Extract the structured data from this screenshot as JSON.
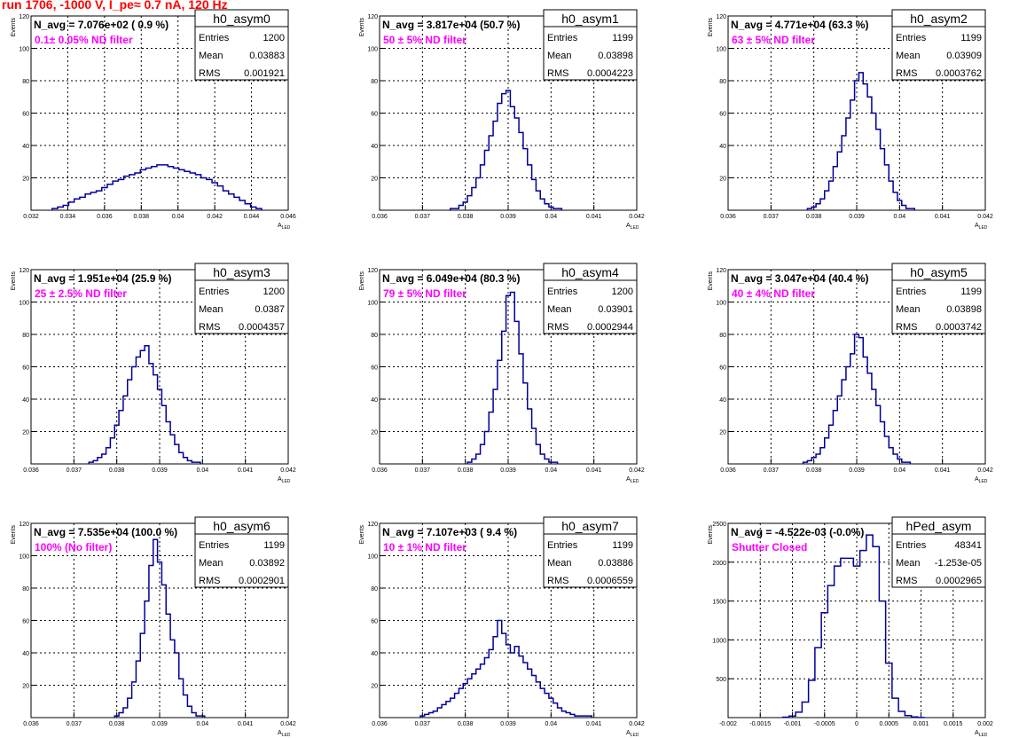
{
  "page_title": "run 1706, -1000 V, I_pe≈ 0.7 nA, 120 Hz",
  "stat_labels": {
    "entries": "Entries",
    "mean": "Mean",
    "rms": "RMS"
  },
  "axis_titles": {
    "y": "Events",
    "x_main": "A",
    "x_sub": "LED"
  },
  "colors": {
    "line": "#000099",
    "note": "#ff00ff",
    "title": "#ff0000",
    "grid": "#000000"
  },
  "chart_data": [
    {
      "type": "bar",
      "name": "h0_asym0",
      "navg": "N_avg = 7.076e+02 ( 0.9 %)",
      "note": "0.1± 0.05% ND filter",
      "stats": {
        "entries": "1200",
        "mean": "0.03883",
        "rms": "0.001921"
      },
      "xlim": [
        0.032,
        0.046
      ],
      "ylim": [
        0,
        120
      ],
      "xticks": [
        0.032,
        0.034,
        0.036,
        0.038,
        0.04,
        0.042,
        0.044,
        0.046
      ],
      "xtick_labels": [
        "0.032",
        "0.034",
        "0.036",
        "0.038",
        "0.04",
        "0.042",
        "0.044",
        "0.046"
      ],
      "yticks": [
        20,
        40,
        60,
        80,
        100,
        120
      ],
      "ytick_labels": [
        "20",
        "40",
        "60",
        "80",
        "100",
        "120"
      ],
      "x": [
        0.0333,
        0.0336,
        0.0339,
        0.0342,
        0.0345,
        0.0348,
        0.0351,
        0.0354,
        0.0357,
        0.036,
        0.0363,
        0.0366,
        0.0369,
        0.0372,
        0.0375,
        0.0378,
        0.0381,
        0.0384,
        0.0387,
        0.039,
        0.0393,
        0.0396,
        0.0399,
        0.0402,
        0.0405,
        0.0408,
        0.0411,
        0.0414,
        0.0417,
        0.042,
        0.0423,
        0.0426,
        0.0429,
        0.0432,
        0.0435,
        0.0438,
        0.0441,
        0.0444
      ],
      "values": [
        1,
        2,
        3,
        5,
        7,
        8,
        10,
        11,
        12,
        14,
        16,
        18,
        19,
        21,
        22,
        23,
        25,
        26,
        27,
        28,
        28,
        27,
        26,
        25,
        24,
        23,
        22,
        20,
        19,
        17,
        15,
        12,
        10,
        8,
        6,
        4,
        2,
        1
      ]
    },
    {
      "type": "bar",
      "name": "h0_asym1",
      "navg": "N_avg = 3.817e+04 (50.7 %)",
      "note": "50 ± 5% ND filter",
      "stats": {
        "entries": "1199",
        "mean": "0.03898",
        "rms": "0.0004223"
      },
      "xlim": [
        0.036,
        0.042
      ],
      "ylim": [
        0,
        120
      ],
      "xticks": [
        0.036,
        0.037,
        0.038,
        0.039,
        0.04,
        0.041,
        0.042
      ],
      "xtick_labels": [
        "0.036",
        "0.037",
        "0.038",
        "0.039",
        "0.04",
        "0.041",
        "0.042"
      ],
      "yticks": [
        20,
        40,
        60,
        80,
        100,
        120
      ],
      "ytick_labels": [
        "20",
        "40",
        "60",
        "80",
        "100",
        "120"
      ],
      "x": [
        0.0377,
        0.0378,
        0.0379,
        0.038,
        0.0381,
        0.0382,
        0.0383,
        0.0384,
        0.0385,
        0.0386,
        0.0387,
        0.0388,
        0.0389,
        0.039,
        0.0391,
        0.0392,
        0.0393,
        0.0394,
        0.0395,
        0.0396,
        0.0397,
        0.0398,
        0.0399,
        0.04,
        0.0401,
        0.0402
      ],
      "values": [
        1,
        1,
        3,
        5,
        9,
        14,
        20,
        28,
        37,
        46,
        55,
        66,
        72,
        74,
        64,
        57,
        48,
        38,
        28,
        19,
        12,
        7,
        4,
        2,
        1,
        1
      ]
    },
    {
      "type": "bar",
      "name": "h0_asym2",
      "navg": "N_avg = 4.771e+04 (63.3 %)",
      "note": "63 ± 5% ND filter",
      "stats": {
        "entries": "1199",
        "mean": "0.03909",
        "rms": "0.0003762"
      },
      "xlim": [
        0.036,
        0.042
      ],
      "ylim": [
        0,
        120
      ],
      "xticks": [
        0.036,
        0.037,
        0.038,
        0.039,
        0.04,
        0.041,
        0.042
      ],
      "xtick_labels": [
        "0.036",
        "0.037",
        "0.038",
        "0.039",
        "0.04",
        "0.041",
        "0.042"
      ],
      "yticks": [
        20,
        40,
        60,
        80,
        100,
        120
      ],
      "ytick_labels": [
        "20",
        "40",
        "60",
        "80",
        "100",
        "120"
      ],
      "x": [
        0.0379,
        0.038,
        0.0381,
        0.0382,
        0.0383,
        0.0384,
        0.0385,
        0.0386,
        0.0387,
        0.0388,
        0.0389,
        0.039,
        0.0391,
        0.0392,
        0.0393,
        0.0394,
        0.0395,
        0.0396,
        0.0397,
        0.0398,
        0.0399,
        0.04,
        0.0401,
        0.0402,
        0.0403
      ],
      "values": [
        1,
        2,
        4,
        7,
        12,
        18,
        27,
        36,
        46,
        57,
        68,
        80,
        85,
        78,
        70,
        60,
        50,
        38,
        28,
        18,
        11,
        6,
        3,
        1,
        1
      ]
    },
    {
      "type": "bar",
      "name": "h0_asym3",
      "navg": "N_avg = 1.951e+04 (25.9 %)",
      "note": "25 ± 2.5% ND filter",
      "stats": {
        "entries": "1200",
        "mean": "0.0387",
        "rms": "0.0004357"
      },
      "xlim": [
        0.036,
        0.042
      ],
      "ylim": [
        0,
        120
      ],
      "xticks": [
        0.036,
        0.037,
        0.038,
        0.039,
        0.04,
        0.041,
        0.042
      ],
      "xtick_labels": [
        "0.036",
        "0.037",
        "0.038",
        "0.039",
        "0.04",
        "0.041",
        "0.042"
      ],
      "yticks": [
        20,
        40,
        60,
        80,
        100,
        120
      ],
      "ytick_labels": [
        "20",
        "40",
        "60",
        "80",
        "100",
        "120"
      ],
      "x": [
        0.0374,
        0.0375,
        0.0376,
        0.0377,
        0.0378,
        0.0379,
        0.038,
        0.0381,
        0.0382,
        0.0383,
        0.0384,
        0.0385,
        0.0386,
        0.0387,
        0.0388,
        0.0389,
        0.039,
        0.0391,
        0.0392,
        0.0393,
        0.0394,
        0.0395,
        0.0396,
        0.0397,
        0.0398,
        0.0399
      ],
      "values": [
        1,
        2,
        4,
        6,
        10,
        16,
        24,
        33,
        42,
        52,
        60,
        66,
        70,
        73,
        62,
        55,
        46,
        36,
        26,
        18,
        12,
        7,
        4,
        2,
        1,
        1
      ]
    },
    {
      "type": "bar",
      "name": "h0_asym4",
      "navg": "N_avg = 6.049e+04 (80.3 %)",
      "note": "79 ± 5% ND filter",
      "stats": {
        "entries": "1200",
        "mean": "0.03901",
        "rms": "0.0002944"
      },
      "xlim": [
        0.036,
        0.042
      ],
      "ylim": [
        0,
        120
      ],
      "xticks": [
        0.036,
        0.037,
        0.038,
        0.039,
        0.04,
        0.041,
        0.042
      ],
      "xtick_labels": [
        "0.036",
        "0.037",
        "0.038",
        "0.039",
        "0.04",
        "0.041",
        "0.042"
      ],
      "yticks": [
        20,
        40,
        60,
        80,
        100,
        120
      ],
      "ytick_labels": [
        "20",
        "40",
        "60",
        "80",
        "100",
        "120"
      ],
      "x": [
        0.0381,
        0.0382,
        0.0383,
        0.0384,
        0.0385,
        0.0386,
        0.0387,
        0.0388,
        0.0389,
        0.039,
        0.0391,
        0.0392,
        0.0393,
        0.0394,
        0.0395,
        0.0396,
        0.0397,
        0.0398,
        0.0399,
        0.04,
        0.0401
      ],
      "values": [
        1,
        3,
        6,
        12,
        20,
        32,
        46,
        64,
        82,
        104,
        106,
        88,
        68,
        50,
        34,
        22,
        12,
        6,
        3,
        1,
        1
      ]
    },
    {
      "type": "bar",
      "name": "h0_asym5",
      "navg": "N_avg = 3.047e+04 (40.4 %)",
      "note": "40 ± 4% ND filter",
      "stats": {
        "entries": "1199",
        "mean": "0.03898",
        "rms": "0.0003742"
      },
      "xlim": [
        0.036,
        0.042
      ],
      "ylim": [
        0,
        120
      ],
      "xticks": [
        0.036,
        0.037,
        0.038,
        0.039,
        0.04,
        0.041,
        0.042
      ],
      "xtick_labels": [
        "0.036",
        "0.037",
        "0.038",
        "0.039",
        "0.04",
        "0.041",
        "0.042"
      ],
      "yticks": [
        20,
        40,
        60,
        80,
        100,
        120
      ],
      "ytick_labels": [
        "20",
        "40",
        "60",
        "80",
        "100",
        "120"
      ],
      "x": [
        0.0378,
        0.0379,
        0.038,
        0.0381,
        0.0382,
        0.0383,
        0.0384,
        0.0385,
        0.0386,
        0.0387,
        0.0388,
        0.0389,
        0.039,
        0.0391,
        0.0392,
        0.0393,
        0.0394,
        0.0395,
        0.0396,
        0.0397,
        0.0398,
        0.0399,
        0.04,
        0.0401,
        0.0402
      ],
      "values": [
        1,
        2,
        4,
        6,
        10,
        16,
        24,
        33,
        42,
        52,
        60,
        68,
        80,
        78,
        66,
        56,
        46,
        36,
        26,
        17,
        10,
        6,
        3,
        1,
        1
      ]
    },
    {
      "type": "bar",
      "name": "h0_asym6",
      "navg": "N_avg = 7.535e+04 (100.0 %)",
      "note": "100% (No filter)",
      "stats": {
        "entries": "1199",
        "mean": "0.03892",
        "rms": "0.0002901"
      },
      "xlim": [
        0.036,
        0.042
      ],
      "ylim": [
        0,
        120
      ],
      "xticks": [
        0.036,
        0.037,
        0.038,
        0.039,
        0.04,
        0.041,
        0.042
      ],
      "xtick_labels": [
        "0.036",
        "0.037",
        "0.038",
        "0.039",
        "0.04",
        "0.041",
        "0.042"
      ],
      "yticks": [
        20,
        40,
        60,
        80,
        100,
        120
      ],
      "ytick_labels": [
        "20",
        "40",
        "60",
        "80",
        "100",
        "120"
      ],
      "x": [
        0.038,
        0.0381,
        0.0382,
        0.0383,
        0.0384,
        0.0385,
        0.0386,
        0.0387,
        0.0388,
        0.0389,
        0.039,
        0.0391,
        0.0392,
        0.0393,
        0.0394,
        0.0395,
        0.0396,
        0.0397,
        0.0398,
        0.0399,
        0.04
      ],
      "values": [
        1,
        3,
        6,
        12,
        22,
        35,
        52,
        72,
        94,
        110,
        96,
        82,
        64,
        48,
        40,
        24,
        14,
        7,
        3,
        1,
        1
      ]
    },
    {
      "type": "bar",
      "name": "h0_asym7",
      "navg": "N_avg = 7.107e+03 ( 9.4 %)",
      "note": "10 ± 1% ND filter",
      "stats": {
        "entries": "1199",
        "mean": "0.03886",
        "rms": "0.0006559"
      },
      "xlim": [
        0.036,
        0.042
      ],
      "ylim": [
        0,
        120
      ],
      "xticks": [
        0.036,
        0.037,
        0.038,
        0.039,
        0.04,
        0.041,
        0.042
      ],
      "xtick_labels": [
        "0.036",
        "0.037",
        "0.038",
        "0.039",
        "0.04",
        "0.041",
        "0.042"
      ],
      "yticks": [
        20,
        40,
        60,
        80,
        100,
        120
      ],
      "ytick_labels": [
        "20",
        "40",
        "60",
        "80",
        "100",
        "120"
      ],
      "x": [
        0.037,
        0.0371,
        0.0372,
        0.0373,
        0.0374,
        0.0375,
        0.0376,
        0.0377,
        0.0378,
        0.0379,
        0.038,
        0.0381,
        0.0382,
        0.0383,
        0.0384,
        0.0385,
        0.0386,
        0.0387,
        0.0388,
        0.0389,
        0.039,
        0.0391,
        0.0392,
        0.0393,
        0.0394,
        0.0395,
        0.0396,
        0.0397,
        0.0398,
        0.0399,
        0.04,
        0.0401,
        0.0402,
        0.0403,
        0.0404,
        0.0405,
        0.0406,
        0.0407,
        0.0408,
        0.0409
      ],
      "values": [
        1,
        2,
        3,
        4,
        6,
        8,
        10,
        12,
        15,
        18,
        21,
        24,
        27,
        30,
        33,
        37,
        42,
        50,
        60,
        52,
        45,
        40,
        44,
        38,
        34,
        30,
        26,
        22,
        18,
        15,
        12,
        9,
        6,
        4,
        3,
        2,
        1,
        1,
        1,
        1
      ]
    },
    {
      "type": "bar",
      "name": "hPed_asym",
      "navg": "N_avg = -4.522e-03 (-0.0%)",
      "note": "Shutter Closed",
      "stats": {
        "entries": "48341",
        "mean": "-1.253e-05",
        "rms": "0.0002965"
      },
      "xlim": [
        -0.002,
        0.002
      ],
      "ylim": [
        0,
        2500
      ],
      "xticks": [
        -0.002,
        -0.0015,
        -0.001,
        -0.0005,
        0,
        0.0005,
        0.001,
        0.0015,
        0.002
      ],
      "xtick_labels": [
        "-0.002",
        "-0.0015",
        "-0.001",
        "-0.0005",
        "0",
        "0.0005",
        "0.001",
        "0.0015",
        "0.002"
      ],
      "yticks": [
        500,
        1000,
        1500,
        2000,
        2500
      ],
      "ytick_labels": [
        "500",
        "1000",
        "1500",
        "2000",
        "2500"
      ],
      "x": [
        -0.0011,
        -0.001,
        -0.0009,
        -0.0008,
        -0.0007,
        -0.0006,
        -0.0005,
        -0.0004,
        -0.0003,
        -0.0002,
        -0.0001,
        0,
        0.0001,
        0.0002,
        0.0003,
        0.0004,
        0.0005,
        0.0006,
        0.0007,
        0.0008,
        0.0009,
        0.001
      ],
      "values": [
        5,
        20,
        70,
        200,
        480,
        900,
        1350,
        1700,
        1950,
        2050,
        2050,
        1950,
        2150,
        2350,
        2200,
        1500,
        700,
        250,
        80,
        25,
        8,
        2
      ]
    }
  ]
}
